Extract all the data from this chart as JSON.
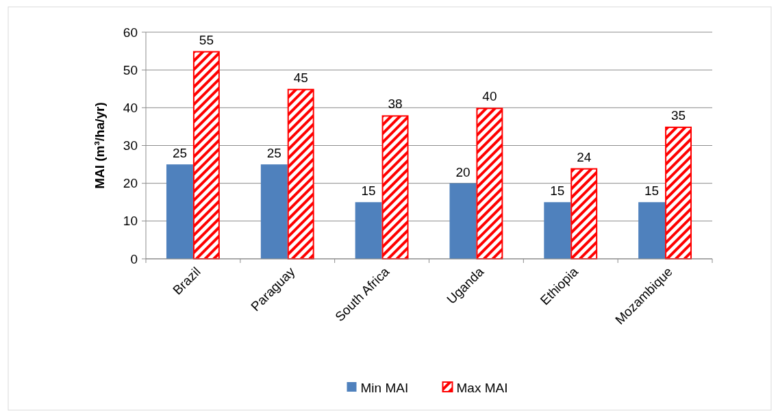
{
  "chart_data": {
    "type": "bar",
    "ylabel": "MAI (m³/ha/yr)",
    "categories": [
      "Brazil",
      "Paraguay",
      "South Africa",
      "Uganda",
      "Ethiopia",
      "Mozambique"
    ],
    "series": [
      {
        "name": "Min MAI",
        "color": "#4f81bd",
        "values": [
          25,
          25,
          15,
          20,
          15,
          15
        ]
      },
      {
        "name": "Max MAI",
        "color": "#ff0000",
        "values": [
          55,
          45,
          38,
          40,
          24,
          35
        ]
      }
    ],
    "ylim": [
      0,
      60
    ],
    "yticks": [
      0,
      10,
      20,
      30,
      40,
      50,
      60
    ],
    "grid": "y",
    "legend": "bottom",
    "data_labels": true
  }
}
